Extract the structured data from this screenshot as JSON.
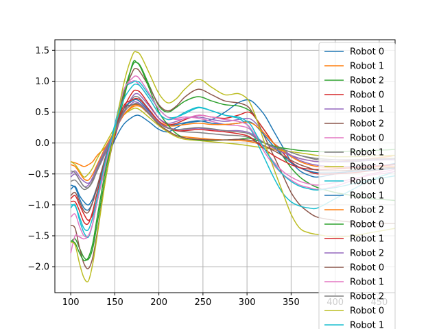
{
  "chart_data": {
    "type": "line",
    "title": "",
    "xlabel": "",
    "ylabel": "",
    "xlim": [
      82,
      468
    ],
    "ylim": [
      -2.42,
      1.67
    ],
    "grid": true,
    "legend_position": "right",
    "x_ticks": [
      100,
      150,
      200,
      250,
      300,
      350,
      400,
      450
    ],
    "y_ticks": [
      -2.0,
      -1.5,
      -1.0,
      -0.5,
      0.0,
      0.5,
      1.0,
      1.5
    ],
    "x_tick_labels": [
      "100",
      "150",
      "200",
      "250",
      "300",
      "350",
      "400",
      "450"
    ],
    "y_tick_labels": [
      "−2.0",
      "−1.5",
      "−1.0",
      "−0.5",
      "0.0",
      "0.5",
      "1.0",
      "1.5"
    ],
    "x": [
      100,
      105,
      110,
      115,
      120,
      125,
      130,
      140,
      150,
      160,
      170,
      175,
      180,
      190,
      200,
      210,
      220,
      230,
      245,
      260,
      275,
      290,
      300,
      305,
      310,
      320,
      330,
      340,
      350,
      360,
      370,
      380,
      400,
      420,
      440,
      460,
      468
    ],
    "series": [
      {
        "name": "Robot 0",
        "color": "#1f77b4",
        "values": [
          -0.75,
          -0.7,
          -0.85,
          -0.95,
          -1.0,
          -0.9,
          -0.7,
          -0.3,
          0.05,
          0.3,
          0.42,
          0.45,
          0.43,
          0.33,
          0.22,
          0.18,
          0.25,
          0.32,
          0.35,
          0.38,
          0.5,
          0.65,
          0.7,
          0.68,
          0.62,
          0.45,
          0.2,
          -0.05,
          -0.3,
          -0.45,
          -0.52,
          -0.55,
          -0.5,
          -0.45,
          -0.4,
          -0.35,
          -0.33
        ]
      },
      {
        "name": "Robot 1",
        "color": "#ff7f0e",
        "values": [
          -0.3,
          -0.32,
          -0.35,
          -0.38,
          -0.35,
          -0.3,
          -0.2,
          -0.05,
          0.2,
          0.45,
          0.58,
          0.6,
          0.58,
          0.45,
          0.3,
          0.2,
          0.12,
          0.1,
          0.08,
          0.06,
          0.05,
          0.04,
          0.03,
          0.02,
          0.0,
          -0.05,
          -0.1,
          -0.15,
          -0.2,
          -0.25,
          -0.28,
          -0.3,
          -0.3,
          -0.28,
          -0.25,
          -0.22,
          -0.2
        ]
      },
      {
        "name": "Robot 2",
        "color": "#2ca02c",
        "values": [
          -1.6,
          -1.55,
          -1.7,
          -1.85,
          -1.88,
          -1.7,
          -1.3,
          -0.5,
          0.2,
          0.8,
          1.25,
          1.3,
          1.22,
          0.9,
          0.6,
          0.5,
          0.58,
          0.68,
          0.75,
          0.68,
          0.62,
          0.6,
          0.55,
          0.5,
          0.4,
          0.2,
          0.0,
          -0.2,
          -0.4,
          -0.55,
          -0.65,
          -0.72,
          -0.8,
          -0.85,
          -0.9,
          -0.92,
          -0.93
        ]
      },
      {
        "name": "Robot 0",
        "color": "#d62728",
        "values": [
          -0.9,
          -0.85,
          -1.0,
          -1.15,
          -1.25,
          -1.15,
          -0.9,
          -0.35,
          0.1,
          0.55,
          0.82,
          0.85,
          0.8,
          0.6,
          0.4,
          0.3,
          0.32,
          0.38,
          0.45,
          0.42,
          0.4,
          0.45,
          0.5,
          0.48,
          0.4,
          0.2,
          0.0,
          -0.15,
          -0.3,
          -0.4,
          -0.46,
          -0.5,
          -0.5,
          -0.48,
          -0.45,
          -0.42,
          -0.4
        ]
      },
      {
        "name": "Robot 1",
        "color": "#9467bd",
        "values": [
          -0.5,
          -0.45,
          -0.55,
          -0.62,
          -0.65,
          -0.58,
          -0.45,
          -0.15,
          0.15,
          0.5,
          0.75,
          0.8,
          0.75,
          0.58,
          0.4,
          0.32,
          0.35,
          0.4,
          0.42,
          0.38,
          0.35,
          0.38,
          0.4,
          0.38,
          0.32,
          0.15,
          0.0,
          -0.1,
          -0.2,
          -0.28,
          -0.33,
          -0.36,
          -0.38,
          -0.38,
          -0.37,
          -0.36,
          -0.35
        ]
      },
      {
        "name": "Robot 2",
        "color": "#8c564b",
        "values": [
          -1.33,
          -1.38,
          -1.7,
          -1.95,
          -2.03,
          -1.85,
          -1.45,
          -0.55,
          0.15,
          0.75,
          1.15,
          1.2,
          1.12,
          0.88,
          0.62,
          0.52,
          0.6,
          0.75,
          0.87,
          0.78,
          0.68,
          0.65,
          0.6,
          0.52,
          0.4,
          0.1,
          -0.2,
          -0.5,
          -0.8,
          -1.0,
          -1.12,
          -1.2,
          -1.25,
          -1.28,
          -1.3,
          -1.3,
          -1.3
        ]
      },
      {
        "name": "Robot 0",
        "color": "#e377c2",
        "values": [
          -1.78,
          -1.5,
          -1.52,
          -1.55,
          -1.5,
          -1.3,
          -0.95,
          -0.35,
          0.25,
          0.85,
          1.0,
          0.98,
          0.9,
          0.7,
          0.48,
          0.38,
          0.4,
          0.42,
          0.4,
          0.35,
          0.3,
          0.28,
          0.25,
          0.2,
          0.1,
          -0.15,
          -0.35,
          -0.5,
          -0.6,
          -0.68,
          -0.72,
          -0.75,
          -0.7,
          -0.6,
          -0.5,
          -0.45,
          -0.42
        ]
      },
      {
        "name": "Robot 1",
        "color": "#7f7f7f",
        "values": [
          -0.62,
          -0.6,
          -0.68,
          -0.75,
          -0.72,
          -0.6,
          -0.42,
          -0.1,
          0.2,
          0.5,
          0.72,
          0.75,
          0.7,
          0.52,
          0.35,
          0.25,
          0.2,
          0.18,
          0.17,
          0.15,
          0.13,
          0.12,
          0.1,
          0.08,
          0.05,
          0.0,
          -0.05,
          -0.1,
          -0.15,
          -0.2,
          -0.24,
          -0.27,
          -0.3,
          -0.3,
          -0.28,
          -0.26,
          -0.25
        ]
      },
      {
        "name": "Robot 2",
        "color": "#bcbd22",
        "values": [
          -0.3,
          -0.35,
          -0.45,
          -0.55,
          -0.5,
          -0.4,
          -0.25,
          0.0,
          0.25,
          0.45,
          0.55,
          0.56,
          0.52,
          0.4,
          0.28,
          0.18,
          0.1,
          0.06,
          0.04,
          0.02,
          0.0,
          -0.02,
          -0.04,
          -0.05,
          -0.06,
          -0.08,
          -0.1,
          -0.12,
          -0.14,
          -0.16,
          -0.18,
          -0.2,
          -0.22,
          -0.22,
          -0.21,
          -0.2,
          -0.2
        ]
      },
      {
        "name": "Robot 0",
        "color": "#17becf",
        "values": [
          -1.05,
          -1.0,
          -1.25,
          -1.45,
          -1.52,
          -1.3,
          -0.95,
          -0.3,
          0.3,
          0.85,
          0.98,
          1.0,
          0.95,
          0.75,
          0.55,
          0.42,
          0.42,
          0.48,
          0.57,
          0.52,
          0.45,
          0.4,
          0.3,
          0.2,
          0.05,
          -0.25,
          -0.55,
          -0.8,
          -0.95,
          -1.02,
          -1.05,
          -1.05,
          -0.9,
          -0.75,
          -0.6,
          -0.5,
          -0.45
        ]
      },
      {
        "name": "Robot 1",
        "color": "#1f77b4",
        "values": [
          -0.68,
          -0.72,
          -0.9,
          -1.05,
          -1.08,
          -0.95,
          -0.72,
          -0.25,
          0.15,
          0.55,
          0.68,
          0.7,
          0.65,
          0.5,
          0.35,
          0.28,
          0.3,
          0.33,
          0.36,
          0.32,
          0.3,
          0.32,
          0.35,
          0.33,
          0.28,
          0.12,
          -0.05,
          -0.2,
          -0.32,
          -0.4,
          -0.45,
          -0.48,
          -0.48,
          -0.46,
          -0.44,
          -0.42,
          -0.41
        ]
      },
      {
        "name": "Robot 2",
        "color": "#ff7f0e",
        "values": [
          -0.35,
          -0.38,
          -0.48,
          -0.58,
          -0.6,
          -0.5,
          -0.35,
          -0.05,
          0.2,
          0.45,
          0.6,
          0.62,
          0.6,
          0.48,
          0.35,
          0.28,
          0.28,
          0.3,
          0.32,
          0.3,
          0.3,
          0.32,
          0.34,
          0.32,
          0.28,
          0.15,
          0.0,
          -0.12,
          -0.22,
          -0.3,
          -0.35,
          -0.38,
          -0.4,
          -0.4,
          -0.39,
          -0.38,
          -0.38
        ]
      },
      {
        "name": "Robot 0",
        "color": "#2ca02c",
        "values": [
          -1.58,
          -1.62,
          -1.78,
          -1.9,
          -1.85,
          -1.62,
          -1.2,
          -0.4,
          0.15,
          0.7,
          1.28,
          1.3,
          1.2,
          0.85,
          0.5,
          0.3,
          0.15,
          0.08,
          0.05,
          0.04,
          0.05,
          0.06,
          0.08,
          0.07,
          0.05,
          0.0,
          -0.05,
          -0.08,
          -0.1,
          -0.12,
          -0.13,
          -0.14,
          -0.14,
          -0.13,
          -0.12,
          -0.11,
          -0.1
        ]
      },
      {
        "name": "Robot 1",
        "color": "#d62728",
        "values": [
          -0.95,
          -0.95,
          -1.1,
          -1.28,
          -1.3,
          -1.1,
          -0.8,
          -0.25,
          0.2,
          0.6,
          0.7,
          0.72,
          0.68,
          0.52,
          0.35,
          0.25,
          0.2,
          0.2,
          0.22,
          0.2,
          0.18,
          0.15,
          0.12,
          0.08,
          0.02,
          -0.1,
          -0.2,
          -0.28,
          -0.35,
          -0.4,
          -0.42,
          -0.43,
          -0.42,
          -0.4,
          -0.38,
          -0.36,
          -0.35
        ]
      },
      {
        "name": "Robot 2",
        "color": "#9467bd",
        "values": [
          -0.55,
          -0.5,
          -0.6,
          -0.7,
          -0.68,
          -0.55,
          -0.38,
          -0.08,
          0.18,
          0.48,
          0.65,
          0.66,
          0.62,
          0.48,
          0.33,
          0.25,
          0.22,
          0.22,
          0.24,
          0.22,
          0.2,
          0.2,
          0.18,
          0.15,
          0.1,
          0.0,
          -0.08,
          -0.15,
          -0.2,
          -0.25,
          -0.28,
          -0.3,
          -0.3,
          -0.29,
          -0.28,
          -0.27,
          -0.27
        ]
      },
      {
        "name": "Robot 0",
        "color": "#8c564b",
        "values": [
          -0.85,
          -0.8,
          -0.95,
          -1.1,
          -1.12,
          -0.95,
          -0.7,
          -0.2,
          0.2,
          0.55,
          0.62,
          0.63,
          0.6,
          0.45,
          0.3,
          0.2,
          0.12,
          0.08,
          0.06,
          0.05,
          0.05,
          0.06,
          0.05,
          0.04,
          0.02,
          -0.05,
          -0.12,
          -0.2,
          -0.28,
          -0.35,
          -0.4,
          -0.44,
          -0.45,
          -0.44,
          -0.42,
          -0.4,
          -0.4
        ]
      },
      {
        "name": "Robot 1",
        "color": "#e377c2",
        "values": [
          -1.2,
          -1.15,
          -1.35,
          -1.5,
          -1.5,
          -1.3,
          -0.95,
          -0.3,
          0.25,
          0.85,
          1.05,
          1.08,
          1.0,
          0.78,
          0.55,
          0.42,
          0.38,
          0.4,
          0.45,
          0.42,
          0.38,
          0.35,
          0.3,
          0.22,
          0.12,
          -0.1,
          -0.3,
          -0.45,
          -0.55,
          -0.62,
          -0.66,
          -0.68,
          -0.64,
          -0.58,
          -0.52,
          -0.48,
          -0.46
        ]
      },
      {
        "name": "Robot 2",
        "color": "#7f7f7f",
        "values": [
          -0.45,
          -0.48,
          -0.6,
          -0.7,
          -0.72,
          -0.62,
          -0.45,
          -0.12,
          0.18,
          0.5,
          0.62,
          0.64,
          0.6,
          0.46,
          0.32,
          0.24,
          0.22,
          0.23,
          0.25,
          0.23,
          0.2,
          0.18,
          0.16,
          0.13,
          0.08,
          0.0,
          -0.06,
          -0.1,
          -0.15,
          -0.2,
          -0.23,
          -0.25,
          -0.27,
          -0.27,
          -0.26,
          -0.25,
          -0.25
        ]
      },
      {
        "name": "Robot 0",
        "color": "#bcbd22",
        "values": [
          -1.6,
          -1.65,
          -1.95,
          -2.18,
          -2.23,
          -1.95,
          -1.5,
          -0.55,
          0.2,
          0.95,
          1.42,
          1.47,
          1.4,
          1.1,
          0.8,
          0.65,
          0.72,
          0.88,
          1.03,
          0.9,
          0.78,
          0.8,
          0.72,
          0.6,
          0.42,
          0.0,
          -0.4,
          -0.78,
          -1.15,
          -1.38,
          -1.45,
          -1.48,
          -1.52,
          -1.5,
          -1.45,
          -1.4,
          -1.38
        ]
      },
      {
        "name": "Robot 1",
        "color": "#17becf",
        "values": [
          -1.0,
          -1.02,
          -1.2,
          -1.38,
          -1.4,
          -1.2,
          -0.88,
          -0.25,
          0.25,
          0.7,
          0.92,
          0.95,
          0.9,
          0.7,
          0.48,
          0.38,
          0.42,
          0.5,
          0.58,
          0.52,
          0.45,
          0.42,
          0.35,
          0.28,
          0.15,
          -0.1,
          -0.32,
          -0.5,
          -0.62,
          -0.7,
          -0.74,
          -0.76,
          -0.72,
          -0.66,
          -0.6,
          -0.55,
          -0.53
        ]
      }
    ]
  }
}
